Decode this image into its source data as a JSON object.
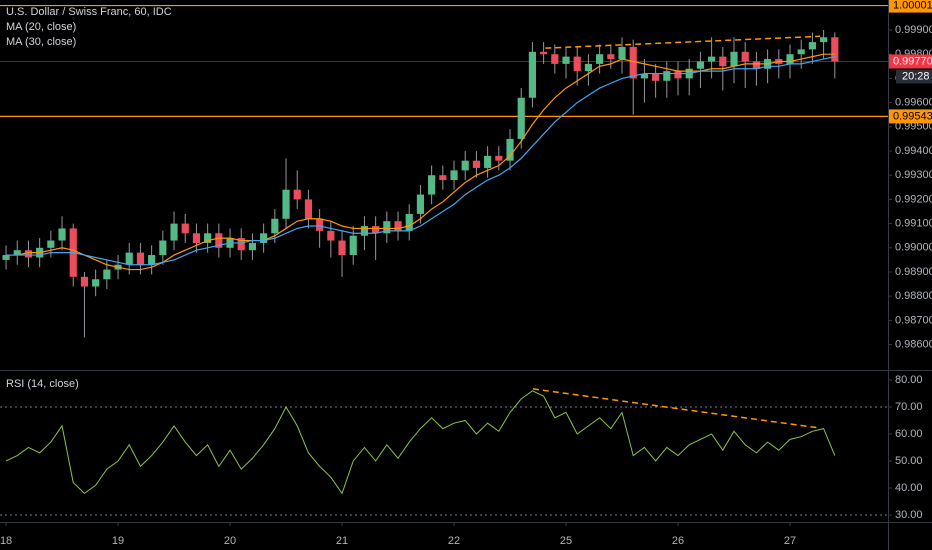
{
  "chart_data": [
    {
      "type": "candlestick",
      "title": "U.S. Dollar / Swiss Franc, 60, IDC",
      "up_color": "#53b987",
      "down_color": "#eb4d5c",
      "wick_color": "#9598a1",
      "x": [
        0,
        0.1,
        0.2,
        0.3,
        0.4,
        0.5,
        0.6,
        0.7,
        0.8,
        0.9,
        1,
        1.1,
        1.2,
        1.3,
        1.4,
        1.5,
        1.6,
        1.7,
        1.8,
        1.9,
        2,
        2.1,
        2.2,
        2.3,
        2.4,
        2.5,
        2.6,
        2.7,
        2.8,
        2.9,
        3,
        3.1,
        3.2,
        3.3,
        3.4,
        3.5,
        3.6,
        3.7,
        3.8,
        3.9,
        4,
        4.1,
        4.2,
        4.3,
        4.4,
        4.5,
        4.6,
        4.7,
        4.8,
        4.9,
        5,
        5.1,
        5.2,
        5.3,
        5.4,
        5.5,
        5.6,
        5.7,
        5.8,
        5.9,
        6,
        6.1,
        6.2,
        6.3,
        6.4,
        6.5,
        6.6,
        6.7,
        6.8,
        6.9,
        7,
        7.1,
        7.2,
        7.3,
        7.4
      ],
      "ohlc": [
        [
          0.9895,
          0.9901,
          0.9891,
          0.9897
        ],
        [
          0.9897,
          0.9903,
          0.9893,
          0.9899
        ],
        [
          0.9899,
          0.9903,
          0.9892,
          0.9896
        ],
        [
          0.9896,
          0.9904,
          0.9892,
          0.99
        ],
        [
          0.99,
          0.9907,
          0.9896,
          0.9903
        ],
        [
          0.9903,
          0.9913,
          0.9899,
          0.9908
        ],
        [
          0.9908,
          0.991,
          0.9884,
          0.9888
        ],
        [
          0.9888,
          0.989,
          0.9863,
          0.9884
        ],
        [
          0.9884,
          0.9891,
          0.988,
          0.9887
        ],
        [
          0.9887,
          0.9895,
          0.9883,
          0.9891
        ],
        [
          0.9891,
          0.9897,
          0.9887,
          0.9893
        ],
        [
          0.9893,
          0.9902,
          0.9889,
          0.9898
        ],
        [
          0.9898,
          0.9902,
          0.9889,
          0.9893
        ],
        [
          0.9893,
          0.9901,
          0.9889,
          0.9897
        ],
        [
          0.9897,
          0.9907,
          0.9893,
          0.9903
        ],
        [
          0.9903,
          0.9915,
          0.9899,
          0.991
        ],
        [
          0.991,
          0.9914,
          0.9902,
          0.9906
        ],
        [
          0.9906,
          0.991,
          0.9898,
          0.9902
        ],
        [
          0.9902,
          0.991,
          0.9898,
          0.9906
        ],
        [
          0.9906,
          0.991,
          0.9896,
          0.99
        ],
        [
          0.99,
          0.9908,
          0.9896,
          0.9904
        ],
        [
          0.9904,
          0.9908,
          0.9895,
          0.9899
        ],
        [
          0.9899,
          0.9906,
          0.9895,
          0.9902
        ],
        [
          0.9902,
          0.991,
          0.9898,
          0.9906
        ],
        [
          0.9906,
          0.9916,
          0.9902,
          0.9912
        ],
        [
          0.9912,
          0.9937,
          0.9908,
          0.9924
        ],
        [
          0.9924,
          0.9932,
          0.9916,
          0.992
        ],
        [
          0.992,
          0.9924,
          0.9908,
          0.9912
        ],
        [
          0.9912,
          0.9916,
          0.99,
          0.9907
        ],
        [
          0.9907,
          0.9911,
          0.9896,
          0.9903
        ],
        [
          0.9903,
          0.9907,
          0.9888,
          0.9897
        ],
        [
          0.9897,
          0.9909,
          0.9893,
          0.9905
        ],
        [
          0.9905,
          0.9913,
          0.9899,
          0.9909
        ],
        [
          0.9909,
          0.9913,
          0.9895,
          0.9906
        ],
        [
          0.9906,
          0.9915,
          0.9902,
          0.9911
        ],
        [
          0.9911,
          0.9915,
          0.9903,
          0.9907
        ],
        [
          0.9907,
          0.9918,
          0.9903,
          0.9914
        ],
        [
          0.9914,
          0.9926,
          0.991,
          0.9922
        ],
        [
          0.9922,
          0.9934,
          0.9918,
          0.993
        ],
        [
          0.993,
          0.9934,
          0.9924,
          0.9928
        ],
        [
          0.9928,
          0.9936,
          0.9924,
          0.9932
        ],
        [
          0.9932,
          0.994,
          0.9928,
          0.9936
        ],
        [
          0.9936,
          0.994,
          0.9929,
          0.9933
        ],
        [
          0.9933,
          0.9942,
          0.9929,
          0.9938
        ],
        [
          0.9938,
          0.9942,
          0.9932,
          0.9936
        ],
        [
          0.9936,
          0.9949,
          0.9932,
          0.9945
        ],
        [
          0.9945,
          0.9966,
          0.9941,
          0.9962
        ],
        [
          0.9962,
          0.9985,
          0.9958,
          0.9981
        ],
        [
          0.9981,
          0.9985,
          0.9976,
          0.998
        ],
        [
          0.998,
          0.9984,
          0.9972,
          0.9976
        ],
        [
          0.9976,
          0.9983,
          0.997,
          0.9979
        ],
        [
          0.9979,
          0.9983,
          0.9967,
          0.9973
        ],
        [
          0.9973,
          0.998,
          0.9967,
          0.9976
        ],
        [
          0.9976,
          0.9984,
          0.9972,
          0.998
        ],
        [
          0.998,
          0.9984,
          0.9974,
          0.9978
        ],
        [
          0.9978,
          0.9987,
          0.9972,
          0.9983
        ],
        [
          0.9983,
          0.9986,
          0.9955,
          0.997
        ],
        [
          0.997,
          0.9978,
          0.996,
          0.9972
        ],
        [
          0.9972,
          0.9976,
          0.9962,
          0.9969
        ],
        [
          0.9969,
          0.9977,
          0.9962,
          0.9973
        ],
        [
          0.9973,
          0.9977,
          0.9963,
          0.997
        ],
        [
          0.997,
          0.9978,
          0.9963,
          0.9974
        ],
        [
          0.9974,
          0.9981,
          0.9966,
          0.9977
        ],
        [
          0.9977,
          0.9987,
          0.997,
          0.9979
        ],
        [
          0.9979,
          0.9983,
          0.9965,
          0.9975
        ],
        [
          0.9975,
          0.9987,
          0.9968,
          0.9981
        ],
        [
          0.9981,
          0.9985,
          0.9966,
          0.9977
        ],
        [
          0.9977,
          0.9981,
          0.9967,
          0.9974
        ],
        [
          0.9974,
          0.9982,
          0.9968,
          0.9978
        ],
        [
          0.9978,
          0.9982,
          0.997,
          0.9976
        ],
        [
          0.9976,
          0.9984,
          0.997,
          0.998
        ],
        [
          0.998,
          0.9986,
          0.9974,
          0.9982
        ],
        [
          0.9982,
          0.9989,
          0.9976,
          0.9985
        ],
        [
          0.9985,
          0.999,
          0.9978,
          0.9987
        ],
        [
          0.9987,
          0.9989,
          0.997,
          0.9977
        ]
      ],
      "series": [
        {
          "name": "MA (20, close)",
          "color": "#ff9800",
          "values": [
            0.9897,
            0.9897,
            0.9898,
            0.9898,
            0.9899,
            0.99,
            0.9899,
            0.9897,
            0.9895,
            0.9893,
            0.9892,
            0.9891,
            0.9891,
            0.9892,
            0.9894,
            0.9897,
            0.9899,
            0.9901,
            0.9903,
            0.9904,
            0.9904,
            0.9903,
            0.9903,
            0.9903,
            0.9905,
            0.9908,
            0.9911,
            0.9912,
            0.9912,
            0.9911,
            0.9909,
            0.9908,
            0.9908,
            0.9908,
            0.9908,
            0.9908,
            0.9909,
            0.9912,
            0.9916,
            0.9919,
            0.9923,
            0.9927,
            0.993,
            0.9932,
            0.9934,
            0.9938,
            0.9944,
            0.9951,
            0.9957,
            0.9962,
            0.9966,
            0.9969,
            0.9972,
            0.9975,
            0.9976,
            0.9978,
            0.9977,
            0.9976,
            0.9975,
            0.9974,
            0.9973,
            0.9973,
            0.9973,
            0.9974,
            0.9974,
            0.9975,
            0.9976,
            0.9976,
            0.9976,
            0.9977,
            0.9977,
            0.9978,
            0.9979,
            0.998,
            0.998
          ]
        },
        {
          "name": "MA (30, close)",
          "color": "#42a5f5",
          "values": [
            0.9897,
            0.9897,
            0.9897,
            0.9897,
            0.9898,
            0.9898,
            0.9898,
            0.9897,
            0.9896,
            0.9895,
            0.9894,
            0.9893,
            0.9893,
            0.9893,
            0.9894,
            0.9895,
            0.9897,
            0.9899,
            0.99,
            0.9901,
            0.9902,
            0.9902,
            0.9903,
            0.9903,
            0.9904,
            0.9906,
            0.9908,
            0.9909,
            0.9909,
            0.9908,
            0.9907,
            0.9906,
            0.9906,
            0.9906,
            0.9907,
            0.9907,
            0.9907,
            0.9909,
            0.9912,
            0.9915,
            0.9918,
            0.9922,
            0.9925,
            0.9928,
            0.993,
            0.9933,
            0.9937,
            0.9942,
            0.9947,
            0.9952,
            0.9956,
            0.996,
            0.9963,
            0.9966,
            0.9968,
            0.997,
            0.9971,
            0.9972,
            0.9972,
            0.9972,
            0.9972,
            0.9972,
            0.9973,
            0.9973,
            0.9973,
            0.9974,
            0.9974,
            0.9974,
            0.9975,
            0.9975,
            0.9976,
            0.9976,
            0.9977,
            0.9978,
            0.9979
          ]
        }
      ],
      "hlines": [
        {
          "value": 1.00001,
          "label": "1.00001",
          "color": "#ff9800"
        },
        {
          "value": 0.99543,
          "label": "0.99543",
          "color": "#ff9800"
        }
      ],
      "last_price": {
        "value": 0.9977,
        "label": "0.99770",
        "color": "#f23645"
      },
      "countdown": "20:28",
      "trendlines": [
        {
          "color": "#ff9800",
          "x": [
            4.815,
            7.268
          ],
          "y": [
            0.99825,
            0.99874
          ]
        }
      ],
      "xlim": [
        -0.054,
        7.875
      ],
      "xticks": [
        {
          "value": 0,
          "label": "18"
        },
        {
          "value": 1,
          "label": "19"
        },
        {
          "value": 2,
          "label": "20"
        },
        {
          "value": 3,
          "label": "21"
        },
        {
          "value": 4,
          "label": "22"
        },
        {
          "value": 5,
          "label": "25"
        },
        {
          "value": 6,
          "label": "26"
        },
        {
          "value": 7,
          "label": "27"
        }
      ],
      "ylim": [
        0.98495,
        1.00024
      ],
      "yticks": [
        {
          "value": 0.986,
          "label": "0.98600"
        },
        {
          "value": 0.987,
          "label": "0.98700"
        },
        {
          "value": 0.988,
          "label": "0.98800"
        },
        {
          "value": 0.989,
          "label": "0.98900"
        },
        {
          "value": 0.99,
          "label": "0.99000"
        },
        {
          "value": 0.991,
          "label": "0.99100"
        },
        {
          "value": 0.992,
          "label": "0.99200"
        },
        {
          "value": 0.993,
          "label": "0.99300"
        },
        {
          "value": 0.994,
          "label": "0.99400"
        },
        {
          "value": 0.995,
          "label": "0.99500"
        },
        {
          "value": 0.996,
          "label": "0.99600"
        },
        {
          "value": 0.997,
          "label": "0.99700"
        },
        {
          "value": 0.998,
          "label": "0.99800"
        },
        {
          "value": 0.999,
          "label": "0.99900"
        }
      ],
      "grid": false
    },
    {
      "type": "line",
      "title": "RSI (14, close)",
      "series": [
        {
          "color": "#8bc34a",
          "values": [
            50,
            52,
            55,
            53,
            57,
            63,
            42,
            38,
            41,
            47,
            50,
            56,
            48,
            52,
            57,
            63,
            57,
            52,
            56,
            48,
            54,
            47,
            51,
            56,
            62,
            70,
            63,
            53,
            48,
            44,
            38,
            50,
            55,
            50,
            56,
            51,
            57,
            62,
            66,
            62,
            64,
            65,
            60,
            64,
            61,
            68,
            73,
            76,
            74,
            66,
            68,
            60,
            63,
            66,
            62,
            68,
            52,
            55,
            50,
            55,
            52,
            56,
            58,
            60,
            54,
            61,
            56,
            53,
            57,
            54,
            58,
            59,
            61,
            62,
            52
          ]
        }
      ],
      "bands": [
        70,
        30
      ],
      "trendlines": [
        {
          "color": "#ff9800",
          "x": [
            4.705,
            7.268
          ],
          "y": [
            76.7,
            62.2
          ]
        }
      ],
      "ylim": [
        27.4,
        83.7
      ],
      "yticks": [
        {
          "value": 30,
          "label": "30.00"
        },
        {
          "value": 40,
          "label": "40.00"
        },
        {
          "value": 50,
          "label": "50.00"
        },
        {
          "value": 60,
          "label": "60.00"
        },
        {
          "value": 70,
          "label": "70.00"
        },
        {
          "value": 80,
          "label": "80.00"
        }
      ]
    }
  ]
}
